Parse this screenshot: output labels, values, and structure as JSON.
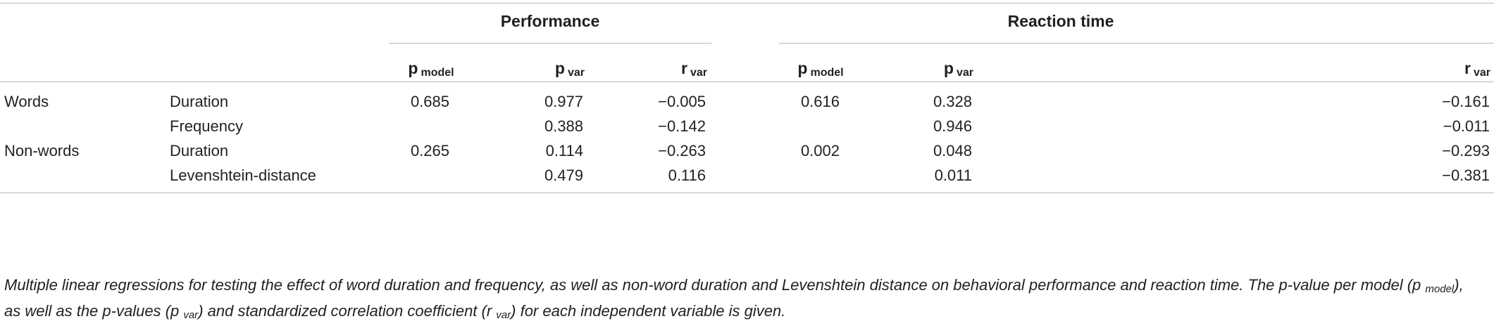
{
  "table": {
    "groups": [
      "Performance",
      "Reaction time"
    ],
    "sub_headers": [
      {
        "base": "p",
        "sub": "model"
      },
      {
        "base": "p",
        "sub": "var"
      },
      {
        "base": "r",
        "sub": "var"
      },
      {
        "base": "p",
        "sub": "model"
      },
      {
        "base": "p",
        "sub": "var"
      },
      {
        "base": "r",
        "sub": "var"
      }
    ],
    "rows": [
      {
        "category": "Words",
        "variable": "Duration",
        "values": [
          "0.685",
          "0.977",
          "−0.005",
          "0.616",
          "0.328",
          "−0.161"
        ]
      },
      {
        "category": "",
        "variable": "Frequency",
        "values": [
          "",
          "0.388",
          "−0.142",
          "",
          "0.946",
          "−0.011"
        ]
      },
      {
        "category": "Non-words",
        "variable": "Duration",
        "values": [
          "0.265",
          "0.114",
          "−0.263",
          "0.002",
          "0.048",
          "−0.293"
        ]
      },
      {
        "category": "",
        "variable": "Levenshtein-distance",
        "values": [
          "",
          "0.479",
          "0.116",
          "",
          "0.011",
          "−0.381"
        ]
      }
    ]
  },
  "caption": {
    "part1": "Multiple linear regressions for testing the effect of word duration and frequency, as well as non-word duration and Levenshtein distance on behavioral performance and reaction time. The p-value per model (p ",
    "sub1": "model",
    "part2": "), as well as the p-values (p ",
    "sub2": "var",
    "part3": ") and standardized correlation coefficient (r ",
    "sub3": "var",
    "part4": ") for each independent variable is given."
  }
}
